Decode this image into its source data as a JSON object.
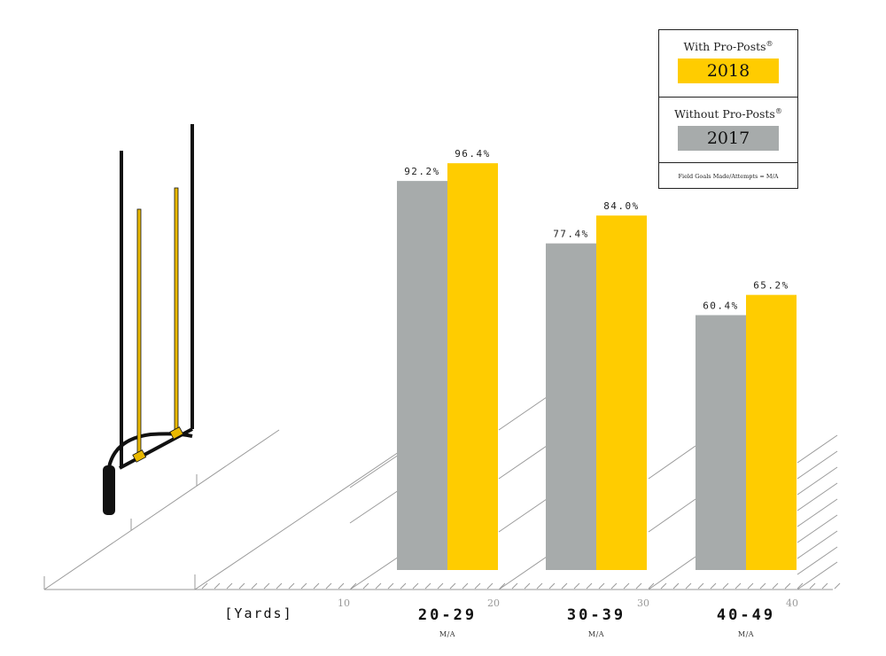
{
  "chart_data": {
    "type": "bar",
    "categories": [
      "20-29",
      "30-39",
      "40-49"
    ],
    "category_sublabel": "M/A",
    "series": [
      {
        "name": "2017",
        "color": "#a7abab",
        "values": [
          92.2,
          77.4,
          60.4
        ],
        "labels": [
          "92.2%",
          "77.4%",
          "60.4%"
        ]
      },
      {
        "name": "2018",
        "color": "#ffcc00",
        "values": [
          96.4,
          84.0,
          65.2
        ],
        "labels": [
          "96.4%",
          "84.0%",
          "65.2%"
        ]
      }
    ],
    "xlabel": "[Yards]",
    "yard_markers": [
      "10",
      "20",
      "30",
      "40"
    ],
    "ylim": [
      0,
      100
    ]
  },
  "legend": {
    "with_label": "With Pro-Posts",
    "with_year": "2018",
    "without_label": "Without Pro-Posts",
    "without_year": "2017",
    "registered_mark": "®",
    "note": "Field Goals Made/Attempts = M/A",
    "with_color": "#ffcc00",
    "without_color": "#a7abab"
  }
}
